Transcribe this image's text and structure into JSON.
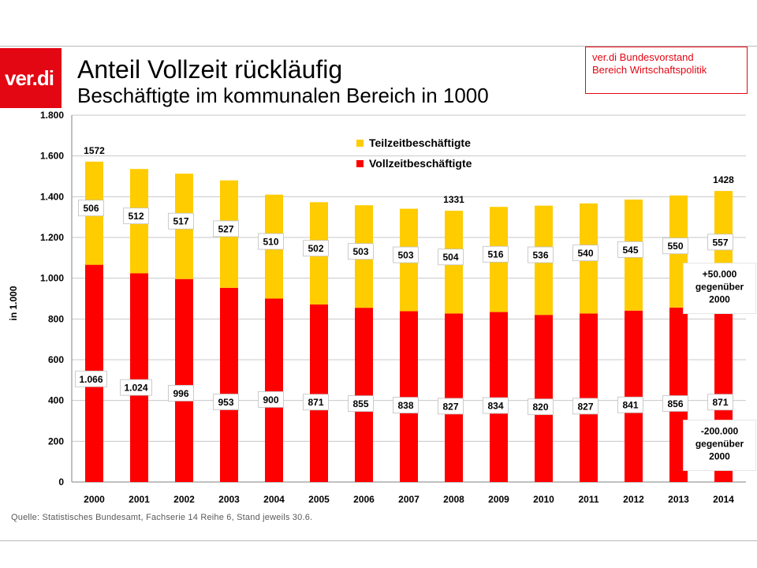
{
  "header": {
    "logo_text": "ver.di",
    "title": "Anteil Vollzeit rückläufig",
    "subtitle": "Beschäftigte im kommunalen Bereich in 1000",
    "org_line1": "ver.di Bundesvorstand",
    "org_line2": "Bereich Wirtschaftspolitik"
  },
  "colors": {
    "vollzeit": "#ff0000",
    "teilzeit": "#ffcc00",
    "brand": "#e30613"
  },
  "chart_data": {
    "type": "bar",
    "stacked": true,
    "categories": [
      "2000",
      "2001",
      "2002",
      "2003",
      "2004",
      "2005",
      "2006",
      "2007",
      "2008",
      "2009",
      "2010",
      "2011",
      "2012",
      "2013",
      "2014"
    ],
    "series": [
      {
        "name": "Vollzeitbeschäftigte",
        "values": [
          1066,
          1024,
          996,
          953,
          900,
          871,
          855,
          838,
          827,
          834,
          820,
          827,
          841,
          856,
          871
        ],
        "labels": [
          "1.066",
          "1.024",
          "996",
          "953",
          "900",
          "871",
          "855",
          "838",
          "827",
          "834",
          "820",
          "827",
          "841",
          "856",
          "871"
        ]
      },
      {
        "name": "Teilzeitbeschäftigte",
        "values": [
          506,
          512,
          517,
          527,
          510,
          502,
          503,
          503,
          504,
          516,
          536,
          540,
          545,
          550,
          557
        ],
        "labels": [
          "506",
          "512",
          "517",
          "527",
          "510",
          "502",
          "503",
          "503",
          "504",
          "516",
          "536",
          "540",
          "545",
          "550",
          "557"
        ]
      }
    ],
    "totals": [
      {
        "category": "2000",
        "label": "1572"
      },
      {
        "category": "2008",
        "label": "1331"
      },
      {
        "category": "2014",
        "label": "1428"
      }
    ],
    "ylabel": "in 1.000",
    "ylim": [
      0,
      1800
    ],
    "yticks": [
      {
        "value": 0,
        "label": "0"
      },
      {
        "value": 200,
        "label": "200"
      },
      {
        "value": 400,
        "label": "400"
      },
      {
        "value": 600,
        "label": "600"
      },
      {
        "value": 800,
        "label": "800"
      },
      {
        "value": 1000,
        "label": "1.000"
      },
      {
        "value": 1200,
        "label": "1.200"
      },
      {
        "value": 1400,
        "label": "1.400"
      },
      {
        "value": 1600,
        "label": "1.600"
      },
      {
        "value": 1800,
        "label": "1.800"
      }
    ],
    "grid": true,
    "legend_position": "top-center",
    "annotations": [
      {
        "lines": [
          "+50.000",
          "gegenüber",
          "2000"
        ],
        "series": "Teilzeitbeschäftigte"
      },
      {
        "lines": [
          "-200.000",
          "gegenüber",
          "2000"
        ],
        "series": "Vollzeitbeschäftigte"
      }
    ]
  },
  "footer": {
    "source": "Quelle: Statistisches Bundesamt, Fachserie 14 Reihe 6, Stand jeweils 30.6."
  }
}
